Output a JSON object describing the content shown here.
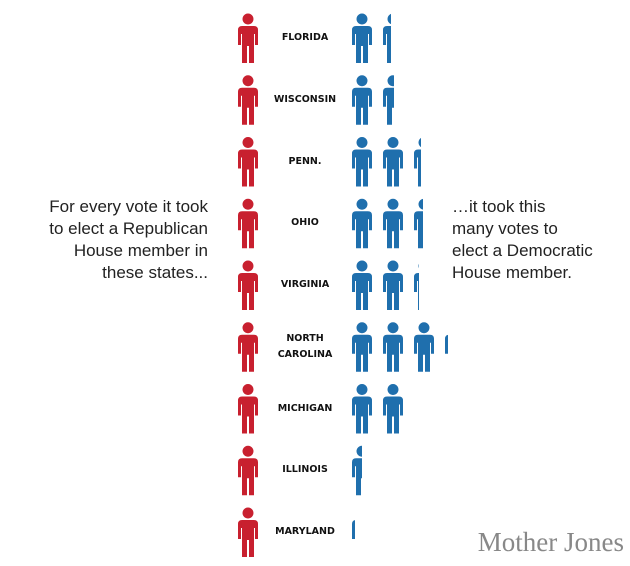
{
  "chart_data": {
    "type": "isotype",
    "left_note": [
      "For every vote it took",
      "to elect a Republican",
      "House member in",
      "these states..."
    ],
    "right_note": [
      "…it took this",
      "many votes to",
      "elect a Democratic",
      "House member."
    ],
    "categories": [
      "FLORIDA",
      "WISCONSIN",
      "PENN.",
      "OHIO",
      "VIRGINIA",
      "NORTH CAROLINA",
      "MICHIGAN",
      "ILLINOIS",
      "MARYLAND"
    ],
    "values": [
      1.4,
      1.55,
      2.35,
      2.45,
      2.25,
      3.15,
      2.0,
      0.5,
      0.15
    ],
    "color": "#1f6fad",
    "base_color": "#c8202f",
    "credit": "Mother Jones"
  }
}
